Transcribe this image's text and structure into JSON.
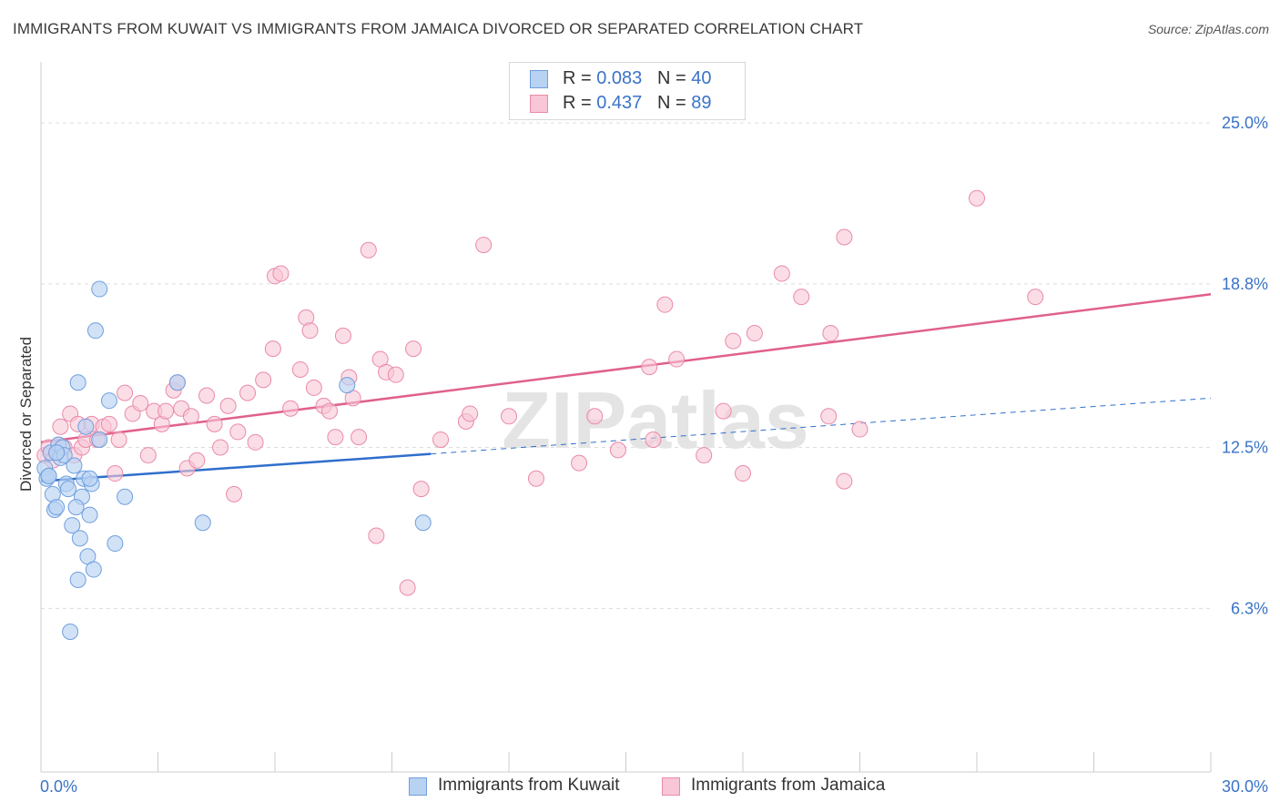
{
  "title": "IMMIGRANTS FROM KUWAIT VS IMMIGRANTS FROM JAMAICA DIVORCED OR SEPARATED CORRELATION CHART",
  "source": "Source: ZipAtlas.com",
  "watermark": "ZIPatlas",
  "legend": {
    "kuwait": {
      "r_label": "R =",
      "r_value": "0.083",
      "n_label": "N =",
      "n_value": "40"
    },
    "jamaica": {
      "r_label": "R =",
      "r_value": "0.437",
      "n_label": "N =",
      "n_value": "89"
    }
  },
  "bottom_legend": {
    "kuwait": "Immigrants from Kuwait",
    "jamaica": "Immigrants from Jamaica"
  },
  "colors": {
    "kuwait_fill": "#b8d2f2",
    "kuwait_stroke": "#6f9fde",
    "kuwait_line": "#2f6fcc",
    "jamaica_fill": "#f8c6d6",
    "jamaica_stroke": "#e98aaa",
    "jamaica_line": "#e0608c",
    "tick_label": "#3a73c8",
    "grid": "#dcdcdc"
  },
  "chart_data": {
    "type": "scatter",
    "title": "IMMIGRANTS FROM KUWAIT VS IMMIGRANTS FROM JAMAICA DIVORCED OR SEPARATED CORRELATION CHART",
    "xlabel": "",
    "ylabel": "Divorced or Separated",
    "xlim": [
      0,
      30
    ],
    "ylim": [
      0,
      27
    ],
    "x_tick_labels": [
      "0.0%",
      "30.0%"
    ],
    "y_ticks": [
      6.3,
      12.5,
      18.8,
      25.0
    ],
    "y_tick_labels": [
      "6.3%",
      "12.5%",
      "18.8%",
      "25.0%"
    ],
    "grid": "horizontal dashed",
    "legend_position": "top-center",
    "series": [
      {
        "name": "Immigrants from Kuwait",
        "R": 0.083,
        "N": 40,
        "points": [
          [
            0.1,
            11.7
          ],
          [
            0.15,
            11.3
          ],
          [
            0.2,
            11.4
          ],
          [
            0.25,
            12.3
          ],
          [
            0.3,
            10.7
          ],
          [
            0.35,
            10.1
          ],
          [
            0.4,
            10.2
          ],
          [
            0.45,
            12.6
          ],
          [
            0.5,
            12.1
          ],
          [
            0.55,
            12.5
          ],
          [
            0.6,
            12.2
          ],
          [
            0.65,
            11.1
          ],
          [
            0.7,
            10.9
          ],
          [
            0.75,
            5.4
          ],
          [
            0.8,
            9.5
          ],
          [
            0.85,
            11.8
          ],
          [
            0.95,
            7.4
          ],
          [
            1.0,
            9.0
          ],
          [
            1.05,
            10.6
          ],
          [
            1.1,
            11.3
          ],
          [
            1.15,
            13.3
          ],
          [
            1.2,
            8.3
          ],
          [
            1.25,
            9.9
          ],
          [
            1.3,
            11.1
          ],
          [
            1.35,
            7.8
          ],
          [
            1.5,
            12.8
          ],
          [
            1.4,
            17.0
          ],
          [
            1.5,
            18.6
          ],
          [
            1.75,
            14.3
          ],
          [
            1.9,
            8.8
          ],
          [
            2.15,
            10.6
          ],
          [
            0.95,
            15.0
          ],
          [
            3.5,
            15.0
          ],
          [
            4.15,
            9.6
          ],
          [
            7.85,
            14.9
          ],
          [
            9.8,
            9.6
          ],
          [
            0.2,
            11.4
          ],
          [
            0.4,
            12.3
          ],
          [
            0.9,
            10.2
          ],
          [
            1.25,
            11.3
          ]
        ],
        "trend": {
          "x": [
            0.0,
            10.0
          ],
          "y": [
            11.2,
            12.25
          ],
          "dashed_to": [
            30.0,
            14.4
          ]
        }
      },
      {
        "name": "Immigrants from Jamaica",
        "R": 0.437,
        "N": 89,
        "points": [
          [
            0.1,
            12.2
          ],
          [
            0.2,
            12.5
          ],
          [
            0.3,
            12.0
          ],
          [
            0.45,
            12.6
          ],
          [
            0.5,
            13.3
          ],
          [
            0.6,
            12.5
          ],
          [
            0.75,
            13.8
          ],
          [
            0.85,
            12.2
          ],
          [
            0.95,
            13.4
          ],
          [
            1.05,
            12.5
          ],
          [
            1.15,
            12.8
          ],
          [
            1.3,
            13.4
          ],
          [
            1.45,
            12.8
          ],
          [
            1.6,
            13.3
          ],
          [
            1.75,
            13.4
          ],
          [
            1.9,
            11.5
          ],
          [
            2.0,
            12.8
          ],
          [
            2.15,
            14.6
          ],
          [
            2.35,
            13.8
          ],
          [
            2.55,
            14.2
          ],
          [
            2.75,
            12.2
          ],
          [
            2.9,
            13.9
          ],
          [
            3.1,
            13.4
          ],
          [
            3.2,
            13.9
          ],
          [
            3.4,
            14.7
          ],
          [
            3.5,
            15.0
          ],
          [
            3.6,
            14.0
          ],
          [
            3.75,
            11.7
          ],
          [
            3.85,
            13.7
          ],
          [
            4.0,
            12.0
          ],
          [
            4.25,
            14.5
          ],
          [
            4.45,
            13.4
          ],
          [
            4.6,
            12.5
          ],
          [
            4.8,
            14.1
          ],
          [
            4.95,
            10.7
          ],
          [
            5.05,
            13.1
          ],
          [
            5.3,
            14.6
          ],
          [
            5.5,
            12.7
          ],
          [
            5.7,
            15.1
          ],
          [
            5.95,
            16.3
          ],
          [
            6.0,
            19.1
          ],
          [
            6.15,
            19.2
          ],
          [
            6.4,
            14.0
          ],
          [
            6.65,
            15.5
          ],
          [
            6.8,
            17.5
          ],
          [
            6.9,
            17.0
          ],
          [
            7.0,
            14.8
          ],
          [
            7.25,
            14.1
          ],
          [
            7.4,
            13.9
          ],
          [
            7.55,
            12.9
          ],
          [
            7.75,
            16.8
          ],
          [
            7.9,
            15.2
          ],
          [
            8.0,
            14.4
          ],
          [
            8.15,
            12.9
          ],
          [
            8.4,
            20.1
          ],
          [
            8.6,
            9.1
          ],
          [
            8.7,
            15.9
          ],
          [
            8.85,
            15.4
          ],
          [
            9.1,
            15.3
          ],
          [
            9.4,
            7.1
          ],
          [
            9.55,
            16.3
          ],
          [
            9.75,
            10.9
          ],
          [
            10.25,
            12.8
          ],
          [
            10.9,
            13.5
          ],
          [
            11.0,
            13.8
          ],
          [
            11.35,
            20.3
          ],
          [
            12.0,
            13.7
          ],
          [
            12.7,
            11.3
          ],
          [
            13.8,
            11.9
          ],
          [
            14.2,
            13.7
          ],
          [
            14.8,
            12.4
          ],
          [
            15.6,
            15.6
          ],
          [
            15.7,
            12.8
          ],
          [
            16.0,
            18.0
          ],
          [
            16.3,
            15.9
          ],
          [
            17.0,
            12.2
          ],
          [
            17.5,
            13.9
          ],
          [
            17.75,
            16.6
          ],
          [
            18.0,
            11.5
          ],
          [
            18.3,
            16.9
          ],
          [
            19.0,
            19.2
          ],
          [
            19.5,
            18.3
          ],
          [
            20.2,
            13.7
          ],
          [
            20.25,
            16.9
          ],
          [
            20.6,
            11.2
          ],
          [
            20.6,
            20.6
          ],
          [
            21.0,
            13.2
          ],
          [
            24.0,
            22.1
          ],
          [
            25.5,
            18.3
          ]
        ],
        "trend": {
          "x": [
            0.0,
            30.0
          ],
          "y": [
            12.7,
            18.4
          ]
        }
      }
    ]
  }
}
